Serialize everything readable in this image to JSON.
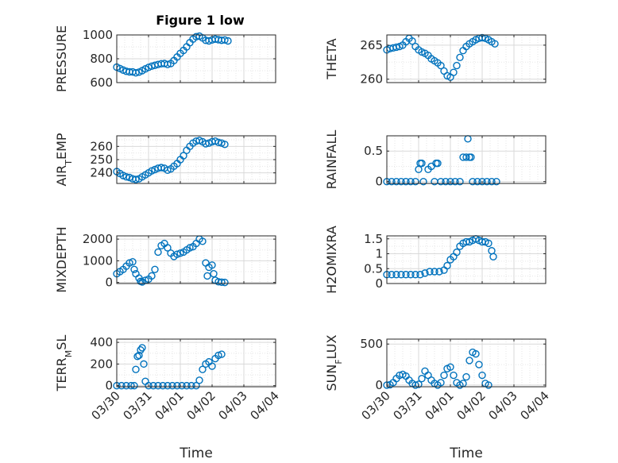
{
  "figure_title": "Figure 1 low",
  "marker_color": "#0072BD",
  "chart_data": [
    {
      "type": "scatter",
      "ylabel": "PRESSURE",
      "title": "Figure 1 low",
      "xlim": [
        0,
        5
      ],
      "ylim": [
        600,
        1000
      ],
      "yticks": [
        600,
        800,
        1000
      ],
      "ytick_labels": [
        "600",
        "800",
        "1000"
      ],
      "x_tick_labels": [],
      "xlabel": "",
      "grid": true,
      "points": [
        [
          0,
          730
        ],
        [
          0.1,
          718
        ],
        [
          0.2,
          705
        ],
        [
          0.3,
          695
        ],
        [
          0.4,
          690
        ],
        [
          0.5,
          690
        ],
        [
          0.6,
          682
        ],
        [
          0.7,
          688
        ],
        [
          0.8,
          700
        ],
        [
          0.9,
          715
        ],
        [
          1.0,
          728
        ],
        [
          1.1,
          738
        ],
        [
          1.2,
          745
        ],
        [
          1.3,
          752
        ],
        [
          1.4,
          758
        ],
        [
          1.5,
          760
        ],
        [
          1.6,
          752
        ],
        [
          1.7,
          760
        ],
        [
          1.8,
          785
        ],
        [
          1.9,
          815
        ],
        [
          2.0,
          845
        ],
        [
          2.1,
          870
        ],
        [
          2.2,
          900
        ],
        [
          2.3,
          935
        ],
        [
          2.4,
          965
        ],
        [
          2.5,
          985
        ],
        [
          2.6,
          990
        ],
        [
          2.7,
          975
        ],
        [
          2.8,
          955
        ],
        [
          2.9,
          950
        ],
        [
          3.0,
          958
        ],
        [
          3.1,
          965
        ],
        [
          3.2,
          960
        ],
        [
          3.3,
          955
        ],
        [
          3.4,
          958
        ],
        [
          3.5,
          950
        ]
      ]
    },
    {
      "type": "scatter",
      "ylabel": "THETA",
      "title": "",
      "xlim": [
        0,
        5
      ],
      "ylim": [
        259.5,
        266.5
      ],
      "yticks": [
        260,
        265
      ],
      "ytick_labels": [
        "260",
        "265"
      ],
      "x_tick_labels": [],
      "xlabel": "",
      "grid": true,
      "points": [
        [
          0,
          264.3
        ],
        [
          0.1,
          264.5
        ],
        [
          0.2,
          264.6
        ],
        [
          0.3,
          264.7
        ],
        [
          0.4,
          264.8
        ],
        [
          0.5,
          265.0
        ],
        [
          0.6,
          265.5
        ],
        [
          0.7,
          266.0
        ],
        [
          0.8,
          265.6
        ],
        [
          0.9,
          264.8
        ],
        [
          1.0,
          264.3
        ],
        [
          1.1,
          264.0
        ],
        [
          1.2,
          263.8
        ],
        [
          1.3,
          263.5
        ],
        [
          1.4,
          263.0
        ],
        [
          1.5,
          262.7
        ],
        [
          1.6,
          262.4
        ],
        [
          1.7,
          262.0
        ],
        [
          1.8,
          261.2
        ],
        [
          1.9,
          260.5
        ],
        [
          2.0,
          260.3
        ],
        [
          2.1,
          261.0
        ],
        [
          2.2,
          262.0
        ],
        [
          2.3,
          263.2
        ],
        [
          2.4,
          264.2
        ],
        [
          2.5,
          264.8
        ],
        [
          2.6,
          265.2
        ],
        [
          2.7,
          265.5
        ],
        [
          2.8,
          265.8
        ],
        [
          2.9,
          266.0
        ],
        [
          3.0,
          266.1
        ],
        [
          3.1,
          266.0
        ],
        [
          3.2,
          265.8
        ],
        [
          3.3,
          265.5
        ],
        [
          3.4,
          265.2
        ]
      ]
    },
    {
      "type": "scatter",
      "ylabel": "AIR_TEMP",
      "title": "",
      "xlim": [
        0,
        5
      ],
      "ylim": [
        232,
        268
      ],
      "yticks": [
        240,
        250,
        260
      ],
      "ytick_labels": [
        "240",
        "250",
        "260"
      ],
      "x_tick_labels": [],
      "xlabel": "",
      "grid": true,
      "points": [
        [
          0,
          241
        ],
        [
          0.1,
          239.5
        ],
        [
          0.2,
          238
        ],
        [
          0.3,
          237
        ],
        [
          0.4,
          236.5
        ],
        [
          0.5,
          235.5
        ],
        [
          0.6,
          235
        ],
        [
          0.7,
          235.5
        ],
        [
          0.8,
          237
        ],
        [
          0.9,
          238.5
        ],
        [
          1.0,
          240
        ],
        [
          1.1,
          241.5
        ],
        [
          1.2,
          242.5
        ],
        [
          1.3,
          243.5
        ],
        [
          1.4,
          244
        ],
        [
          1.5,
          243.5
        ],
        [
          1.6,
          242
        ],
        [
          1.7,
          243
        ],
        [
          1.8,
          245
        ],
        [
          1.9,
          247
        ],
        [
          2.0,
          250
        ],
        [
          2.1,
          253
        ],
        [
          2.2,
          257
        ],
        [
          2.3,
          260
        ],
        [
          2.4,
          262.5
        ],
        [
          2.5,
          264
        ],
        [
          2.6,
          264.5
        ],
        [
          2.7,
          263.5
        ],
        [
          2.8,
          262
        ],
        [
          2.9,
          262.5
        ],
        [
          3.0,
          263.5
        ],
        [
          3.1,
          264
        ],
        [
          3.2,
          263
        ],
        [
          3.3,
          262.5
        ],
        [
          3.4,
          261.5
        ]
      ]
    },
    {
      "type": "scatter",
      "ylabel": "RAINFALL",
      "title": "",
      "xlim": [
        0,
        5
      ],
      "ylim": [
        -0.03,
        0.75
      ],
      "yticks": [
        0,
        0.5
      ],
      "ytick_labels": [
        "0",
        "0.5"
      ],
      "x_tick_labels": [],
      "xlabel": "",
      "grid": true,
      "points": [
        [
          0,
          0
        ],
        [
          0.15,
          0
        ],
        [
          0.3,
          0
        ],
        [
          0.45,
          0
        ],
        [
          0.6,
          0
        ],
        [
          0.75,
          0
        ],
        [
          0.9,
          0
        ],
        [
          1.0,
          0.2
        ],
        [
          1.05,
          0.3
        ],
        [
          1.1,
          0.3
        ],
        [
          1.15,
          0
        ],
        [
          1.3,
          0.2
        ],
        [
          1.4,
          0.25
        ],
        [
          1.5,
          0
        ],
        [
          1.55,
          0.3
        ],
        [
          1.6,
          0.3
        ],
        [
          1.7,
          0
        ],
        [
          1.85,
          0
        ],
        [
          2.0,
          0
        ],
        [
          2.15,
          0
        ],
        [
          2.3,
          0
        ],
        [
          2.4,
          0.4
        ],
        [
          2.5,
          0.4
        ],
        [
          2.55,
          0.7
        ],
        [
          2.6,
          0.4
        ],
        [
          2.65,
          0.4
        ],
        [
          2.7,
          0
        ],
        [
          2.85,
          0
        ],
        [
          3.0,
          0
        ],
        [
          3.15,
          0
        ],
        [
          3.3,
          0
        ],
        [
          3.45,
          0
        ]
      ]
    },
    {
      "type": "scatter",
      "ylabel": "MIXDEPTH",
      "title": "",
      "xlim": [
        0,
        5
      ],
      "ylim": [
        -50,
        2150
      ],
      "yticks": [
        0,
        1000,
        2000
      ],
      "ytick_labels": [
        "0",
        "1000",
        "2000"
      ],
      "x_tick_labels": [],
      "xlabel": "",
      "grid": true,
      "points": [
        [
          0,
          400
        ],
        [
          0.1,
          500
        ],
        [
          0.2,
          600
        ],
        [
          0.3,
          750
        ],
        [
          0.4,
          900
        ],
        [
          0.5,
          950
        ],
        [
          0.55,
          600
        ],
        [
          0.6,
          400
        ],
        [
          0.7,
          200
        ],
        [
          0.75,
          50
        ],
        [
          0.8,
          20
        ],
        [
          0.9,
          100
        ],
        [
          1.0,
          150
        ],
        [
          1.1,
          300
        ],
        [
          1.2,
          600
        ],
        [
          1.3,
          1400
        ],
        [
          1.4,
          1700
        ],
        [
          1.5,
          1800
        ],
        [
          1.6,
          1600
        ],
        [
          1.7,
          1350
        ],
        [
          1.8,
          1200
        ],
        [
          1.9,
          1300
        ],
        [
          2.0,
          1350
        ],
        [
          2.1,
          1400
        ],
        [
          2.2,
          1500
        ],
        [
          2.3,
          1600
        ],
        [
          2.4,
          1650
        ],
        [
          2.5,
          1800
        ],
        [
          2.6,
          2000
        ],
        [
          2.7,
          1900
        ],
        [
          2.8,
          900
        ],
        [
          2.85,
          300
        ],
        [
          2.9,
          700
        ],
        [
          3.0,
          800
        ],
        [
          3.05,
          400
        ],
        [
          3.1,
          100
        ],
        [
          3.2,
          30
        ],
        [
          3.3,
          10
        ],
        [
          3.4,
          0
        ]
      ]
    },
    {
      "type": "scatter",
      "ylabel": "H2OMIXRA",
      "title": "",
      "xlim": [
        0,
        5
      ],
      "ylim": [
        0,
        1.6
      ],
      "yticks": [
        0,
        0.5,
        1,
        1.5
      ],
      "ytick_labels": [
        "0",
        "0.5",
        "1",
        "1.5"
      ],
      "x_tick_labels": [],
      "xlabel": "",
      "grid": true,
      "points": [
        [
          0,
          0.3
        ],
        [
          0.15,
          0.3
        ],
        [
          0.3,
          0.3
        ],
        [
          0.45,
          0.3
        ],
        [
          0.6,
          0.3
        ],
        [
          0.75,
          0.3
        ],
        [
          0.9,
          0.3
        ],
        [
          1.05,
          0.3
        ],
        [
          1.2,
          0.35
        ],
        [
          1.35,
          0.4
        ],
        [
          1.5,
          0.4
        ],
        [
          1.65,
          0.4
        ],
        [
          1.8,
          0.45
        ],
        [
          1.9,
          0.6
        ],
        [
          2.0,
          0.8
        ],
        [
          2.1,
          0.9
        ],
        [
          2.2,
          1.05
        ],
        [
          2.3,
          1.25
        ],
        [
          2.4,
          1.35
        ],
        [
          2.5,
          1.4
        ],
        [
          2.6,
          1.4
        ],
        [
          2.7,
          1.45
        ],
        [
          2.8,
          1.5
        ],
        [
          2.9,
          1.45
        ],
        [
          3.0,
          1.4
        ],
        [
          3.1,
          1.4
        ],
        [
          3.2,
          1.35
        ],
        [
          3.3,
          1.1
        ],
        [
          3.35,
          0.9
        ]
      ]
    },
    {
      "type": "scatter",
      "ylabel": "TERR_MSL",
      "title": "",
      "xlim": [
        0,
        5
      ],
      "ylim": [
        -10,
        430
      ],
      "yticks": [
        0,
        200,
        400
      ],
      "ytick_labels": [
        "0",
        "200",
        "400"
      ],
      "x_tick_labels": [
        "03/30",
        "03/31",
        "04/01",
        "04/02",
        "04/03",
        "04/04"
      ],
      "xlabel": "Time",
      "grid": true,
      "points": [
        [
          0,
          0
        ],
        [
          0.15,
          0
        ],
        [
          0.3,
          0
        ],
        [
          0.45,
          0
        ],
        [
          0.55,
          0
        ],
        [
          0.6,
          150
        ],
        [
          0.65,
          270
        ],
        [
          0.7,
          280
        ],
        [
          0.75,
          330
        ],
        [
          0.8,
          350
        ],
        [
          0.85,
          200
        ],
        [
          0.9,
          40
        ],
        [
          1.0,
          0
        ],
        [
          1.15,
          0
        ],
        [
          1.3,
          0
        ],
        [
          1.45,
          0
        ],
        [
          1.6,
          0
        ],
        [
          1.75,
          0
        ],
        [
          1.9,
          0
        ],
        [
          2.05,
          0
        ],
        [
          2.2,
          0
        ],
        [
          2.35,
          0
        ],
        [
          2.5,
          0
        ],
        [
          2.6,
          50
        ],
        [
          2.7,
          150
        ],
        [
          2.8,
          200
        ],
        [
          2.9,
          220
        ],
        [
          3.0,
          180
        ],
        [
          3.1,
          250
        ],
        [
          3.2,
          280
        ],
        [
          3.3,
          290
        ]
      ]
    },
    {
      "type": "scatter",
      "ylabel": "SUN_FLUX",
      "title": "",
      "xlim": [
        0,
        5
      ],
      "ylim": [
        -20,
        560
      ],
      "yticks": [
        0,
        500
      ],
      "ytick_labels": [
        "0",
        "500"
      ],
      "x_tick_labels": [
        "03/30",
        "03/31",
        "04/01",
        "04/02",
        "04/03",
        "04/04"
      ],
      "xlabel": "Time",
      "grid": true,
      "points": [
        [
          0,
          0
        ],
        [
          0.1,
          5
        ],
        [
          0.2,
          30
        ],
        [
          0.3,
          80
        ],
        [
          0.4,
          120
        ],
        [
          0.5,
          130
        ],
        [
          0.6,
          110
        ],
        [
          0.7,
          60
        ],
        [
          0.8,
          20
        ],
        [
          0.9,
          0
        ],
        [
          1.0,
          10
        ],
        [
          1.1,
          80
        ],
        [
          1.2,
          170
        ],
        [
          1.3,
          120
        ],
        [
          1.4,
          60
        ],
        [
          1.5,
          20
        ],
        [
          1.6,
          0
        ],
        [
          1.7,
          30
        ],
        [
          1.8,
          120
        ],
        [
          1.9,
          200
        ],
        [
          2.0,
          220
        ],
        [
          2.1,
          120
        ],
        [
          2.2,
          30
        ],
        [
          2.3,
          0
        ],
        [
          2.4,
          20
        ],
        [
          2.5,
          100
        ],
        [
          2.6,
          300
        ],
        [
          2.7,
          400
        ],
        [
          2.8,
          380
        ],
        [
          2.9,
          250
        ],
        [
          3.0,
          120
        ],
        [
          3.1,
          20
        ],
        [
          3.2,
          0
        ]
      ]
    }
  ]
}
